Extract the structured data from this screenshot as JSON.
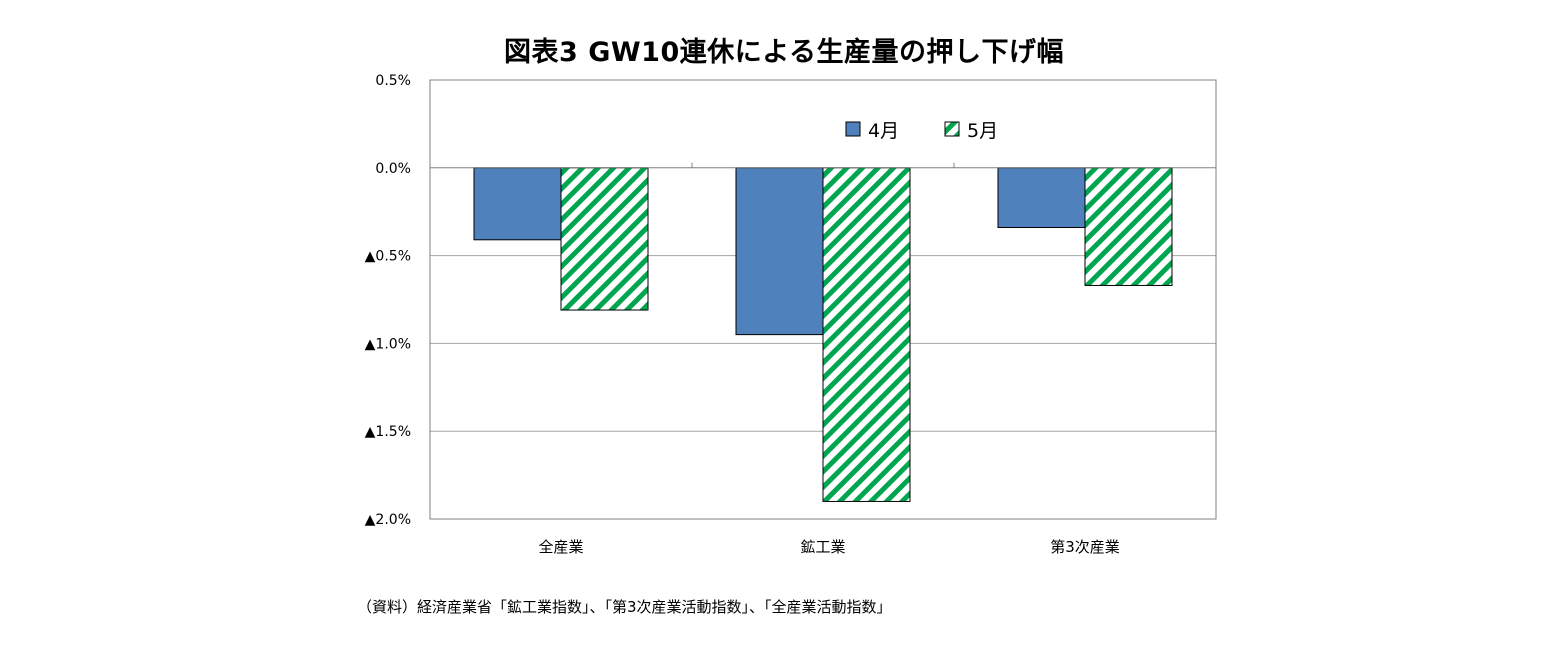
{
  "chart_data": {
    "type": "bar",
    "title": "図表3 GW10連休による生産量の押し下げ幅",
    "categories": [
      "全産業",
      "鉱工業",
      "第3次産業"
    ],
    "series": [
      {
        "name": "4月",
        "values": [
          -0.41,
          -0.95,
          -0.34
        ],
        "color": "#4f81bd",
        "fill": "solid"
      },
      {
        "name": "5月",
        "values": [
          -0.81,
          -1.9,
          -0.67
        ],
        "color": "#00a550",
        "fill": "diagonal-hatch"
      }
    ],
    "ylim": [
      -2.0,
      0.5
    ],
    "yticks": [
      0.5,
      0.0,
      -0.5,
      -1.0,
      -1.5,
      -2.0
    ],
    "ytick_labels": [
      "0.5%",
      "0.0%",
      "▲0.5%",
      "▲1.0%",
      "▲1.5%",
      "▲2.0%"
    ],
    "xlabel": "",
    "ylabel": "",
    "grid": true,
    "legend_position": "top-right, inside plot area"
  },
  "source_note": "（資料）経済産業省「鉱工業指数」、「第3次産業活動指数」、「全産業活動指数」"
}
